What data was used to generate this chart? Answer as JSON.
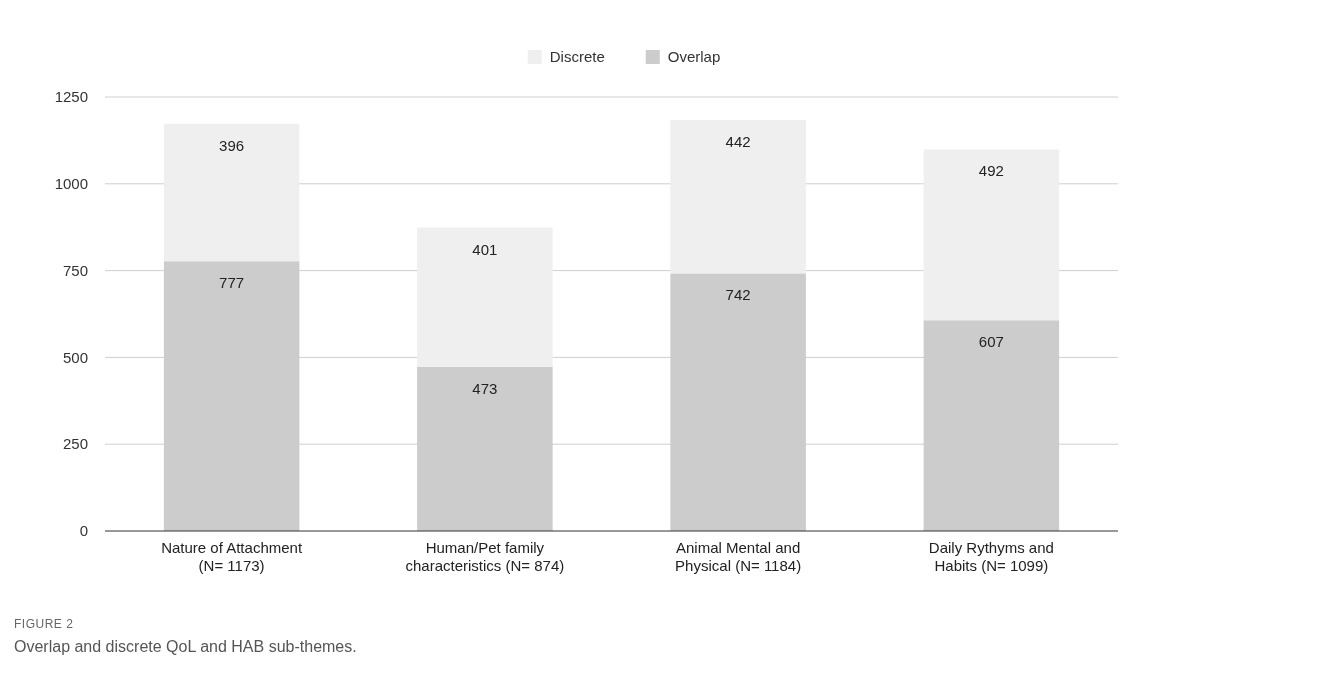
{
  "chart_data": {
    "type": "bar",
    "stacked": true,
    "categories": [
      "Nature of Attachment\n(N= 1173)",
      "Human/Pet family\ncharacteristics (N= 874)",
      "Animal Mental and\nPhysical (N= 1184)",
      "Daily Rythyms and\nHabits (N= 1099)"
    ],
    "series": [
      {
        "name": "Overlap",
        "color": "#cccccc",
        "values": [
          777,
          473,
          742,
          607
        ]
      },
      {
        "name": "Discrete",
        "color": "#efefef",
        "values": [
          396,
          401,
          442,
          492
        ]
      }
    ],
    "ylim": [
      0,
      1250
    ],
    "yticks": [
      0,
      250,
      500,
      750,
      1000,
      1250
    ],
    "grid": "y",
    "legend": "top",
    "data_labels": true,
    "annotations": [
      "FIGURE 2",
      "Overlap and discrete QoL and HAB sub-themes."
    ]
  }
}
